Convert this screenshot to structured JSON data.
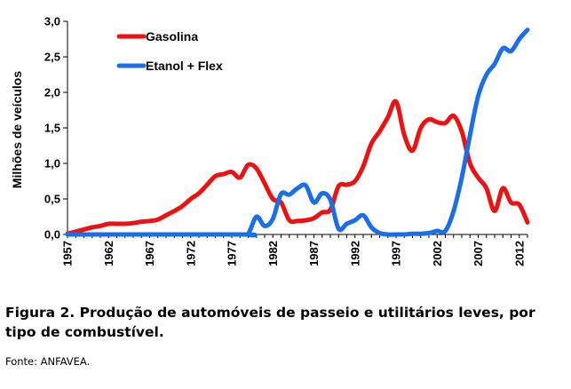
{
  "caption": "Figura 2. Produção de automóveis de passeio e utilitários leves, por tipo de combustível.",
  "source": "Fonte: ANFAVEA.",
  "chart_data": {
    "type": "line",
    "title": "",
    "xlabel": "",
    "ylabel": "Milhões de veículos",
    "xlim": [
      1957,
      2013
    ],
    "ylim": [
      0,
      3.0
    ],
    "x_ticks": [
      "1957",
      "1962",
      "1967",
      "1972",
      "1977",
      "1982",
      "1987",
      "1992",
      "1997",
      "2002",
      "2007",
      "2012"
    ],
    "y_ticks": [
      "0,0",
      "0,5",
      "1,0",
      "1,5",
      "2,0",
      "2,5",
      "3,0"
    ],
    "legend_position": "top-left",
    "grid": false,
    "series": [
      {
        "name": "Gasolina",
        "color": "#ee1111",
        "x": [
          1957,
          1958,
          1959,
          1960,
          1961,
          1962,
          1963,
          1964,
          1965,
          1966,
          1967,
          1968,
          1969,
          1970,
          1971,
          1972,
          1973,
          1974,
          1975,
          1976,
          1977,
          1978,
          1979,
          1980,
          1981,
          1982,
          1983,
          1984,
          1985,
          1986,
          1987,
          1988,
          1989,
          1990,
          1991,
          1992,
          1993,
          1994,
          1995,
          1996,
          1997,
          1998,
          1999,
          2000,
          2001,
          2002,
          2003,
          2004,
          2005,
          2006,
          2007,
          2008,
          2009,
          2010,
          2011,
          2012,
          2013
        ],
        "y": [
          0.01,
          0.04,
          0.07,
          0.1,
          0.12,
          0.15,
          0.15,
          0.15,
          0.16,
          0.18,
          0.19,
          0.21,
          0.27,
          0.33,
          0.4,
          0.5,
          0.58,
          0.7,
          0.82,
          0.85,
          0.88,
          0.8,
          0.98,
          0.93,
          0.72,
          0.5,
          0.45,
          0.2,
          0.19,
          0.2,
          0.23,
          0.31,
          0.35,
          0.68,
          0.7,
          0.75,
          0.96,
          1.28,
          1.45,
          1.65,
          1.87,
          1.4,
          1.18,
          1.5,
          1.62,
          1.58,
          1.57,
          1.67,
          1.45,
          1.0,
          0.8,
          0.65,
          0.33,
          0.65,
          0.45,
          0.42,
          0.17
        ]
      },
      {
        "name": "Etanol + Flex",
        "color": "#1a6ee8",
        "x": [
          1957,
          1978,
          1979,
          1980,
          1981,
          1982,
          1983,
          1984,
          1985,
          1986,
          1987,
          1988,
          1989,
          1990,
          1991,
          1992,
          1993,
          1994,
          1995,
          1996,
          1997,
          1998,
          1999,
          2000,
          2001,
          2002,
          2003,
          2004,
          2005,
          2006,
          2007,
          2008,
          2009,
          2010,
          2011,
          2012,
          2013
        ],
        "y": [
          0,
          0,
          0.01,
          0.25,
          0.12,
          0.22,
          0.57,
          0.56,
          0.65,
          0.69,
          0.45,
          0.58,
          0.49,
          0.08,
          0.15,
          0.2,
          0.27,
          0.1,
          0.02,
          0.0,
          0.0,
          0.0,
          0.01,
          0.01,
          0.02,
          0.05,
          0.05,
          0.33,
          0.8,
          1.4,
          1.95,
          2.25,
          2.4,
          2.62,
          2.58,
          2.75,
          2.88
        ]
      }
    ]
  }
}
